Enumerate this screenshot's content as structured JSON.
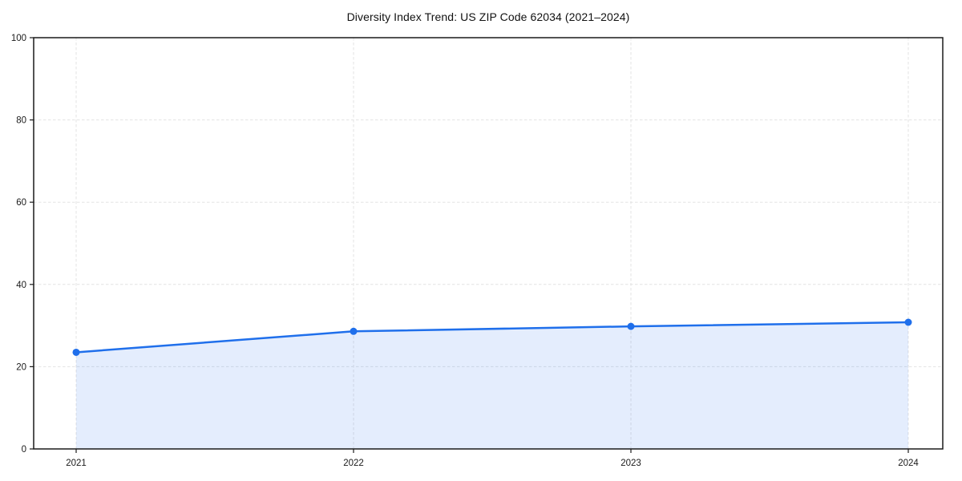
{
  "chart_data": {
    "type": "area",
    "title": "Diversity Index Trend: US ZIP Code 62034 (2021–2024)",
    "series_name": "Diversity Index",
    "categories": [
      "2021",
      "2022",
      "2023",
      "2024"
    ],
    "values": [
      23.5,
      28.6,
      29.8,
      30.8
    ],
    "xlabel": "",
    "ylabel": "",
    "ylim": [
      0,
      100
    ],
    "yticks": [
      0,
      20,
      40,
      60,
      80,
      100
    ],
    "grid": true,
    "grid_style": "dashed",
    "legend_position": "none",
    "marker": "circle",
    "colors": {
      "line": "#1f6feb",
      "marker": "#1f6feb",
      "area_fill": "rgba(31,111,235,0.12)",
      "grid": "#e3e3e3",
      "spine": "#1a1a1a",
      "tick_label": "#1a1a1a",
      "title": "#111111"
    }
  }
}
